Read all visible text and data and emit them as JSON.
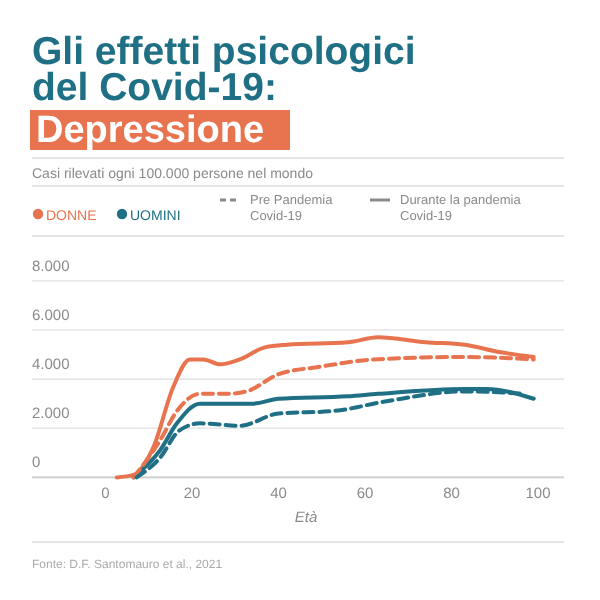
{
  "chart_data": {
    "type": "line",
    "title": "Gli effetti psicologici\ndel Covid-19:",
    "subtitle": "Depressione",
    "xlabel": "Età",
    "xlim": [
      -17,
      106
    ],
    "xticks": [
      0,
      20,
      40,
      60,
      80,
      100
    ],
    "ylim": [
      0,
      8000
    ],
    "yticks": [
      0,
      {
        "value": 2000,
        "label": "2.000"
      },
      {
        "value": 4000,
        "label": "4.000"
      },
      {
        "value": 6000,
        "label": "6.000"
      },
      {
        "value": 8000,
        "label": "8.000"
      }
    ],
    "grid": "y",
    "legend": "top",
    "annotations": [
      "Casi rilevati ogni 100.000 persone nel mondo",
      "Pre Pandemia\nCovid-19",
      "Durante la pandemia\nCovid-19",
      "Fonte:  D.F. Santomauro et al., 2021"
    ],
    "series": [
      {
        "name": "DONNE",
        "color": "#e8744f",
        "line_style": "solid",
        "x": [
          2.6,
          6.5,
          11,
          15.7,
          19.5,
          22.6,
          26.5,
          31,
          37,
          42,
          56,
          63,
          74,
          83,
          91,
          99
        ],
        "values": [
          0,
          100,
          1200,
          3700,
          4800,
          4800,
          4600,
          4800,
          5300,
          5400,
          5500,
          5700,
          5500,
          5400,
          5100,
          4900
        ]
      },
      {
        "name": "UOMINI",
        "color": "#1f6f85",
        "line_style": "solid",
        "x": [
          6.5,
          12.6,
          16.5,
          21.8,
          34,
          40,
          56,
          63,
          83,
          88,
          99
        ],
        "values": [
          0,
          1100,
          2200,
          3000,
          3000,
          3200,
          3300,
          3400,
          3600,
          3600,
          3200
        ]
      },
      {
        "color": "#e8744f",
        "line_style": "dashed",
        "x": [
          6.5,
          12.6,
          16.5,
          21.8,
          28,
          32.6,
          40,
          49.5,
          62,
          83,
          99
        ],
        "values": [
          0,
          1500,
          2700,
          3400,
          3400,
          3500,
          4200,
          4500,
          4800,
          4900,
          4800
        ]
      },
      {
        "color": "#1f6f85",
        "line_style": "dashed",
        "x": [
          7.2,
          12.6,
          17,
          21.8,
          31,
          40,
          52.6,
          65,
          83,
          97
        ],
        "values": [
          0,
          800,
          1900,
          2200,
          2100,
          2600,
          2700,
          3100,
          3500,
          3400
        ]
      }
    ]
  }
}
